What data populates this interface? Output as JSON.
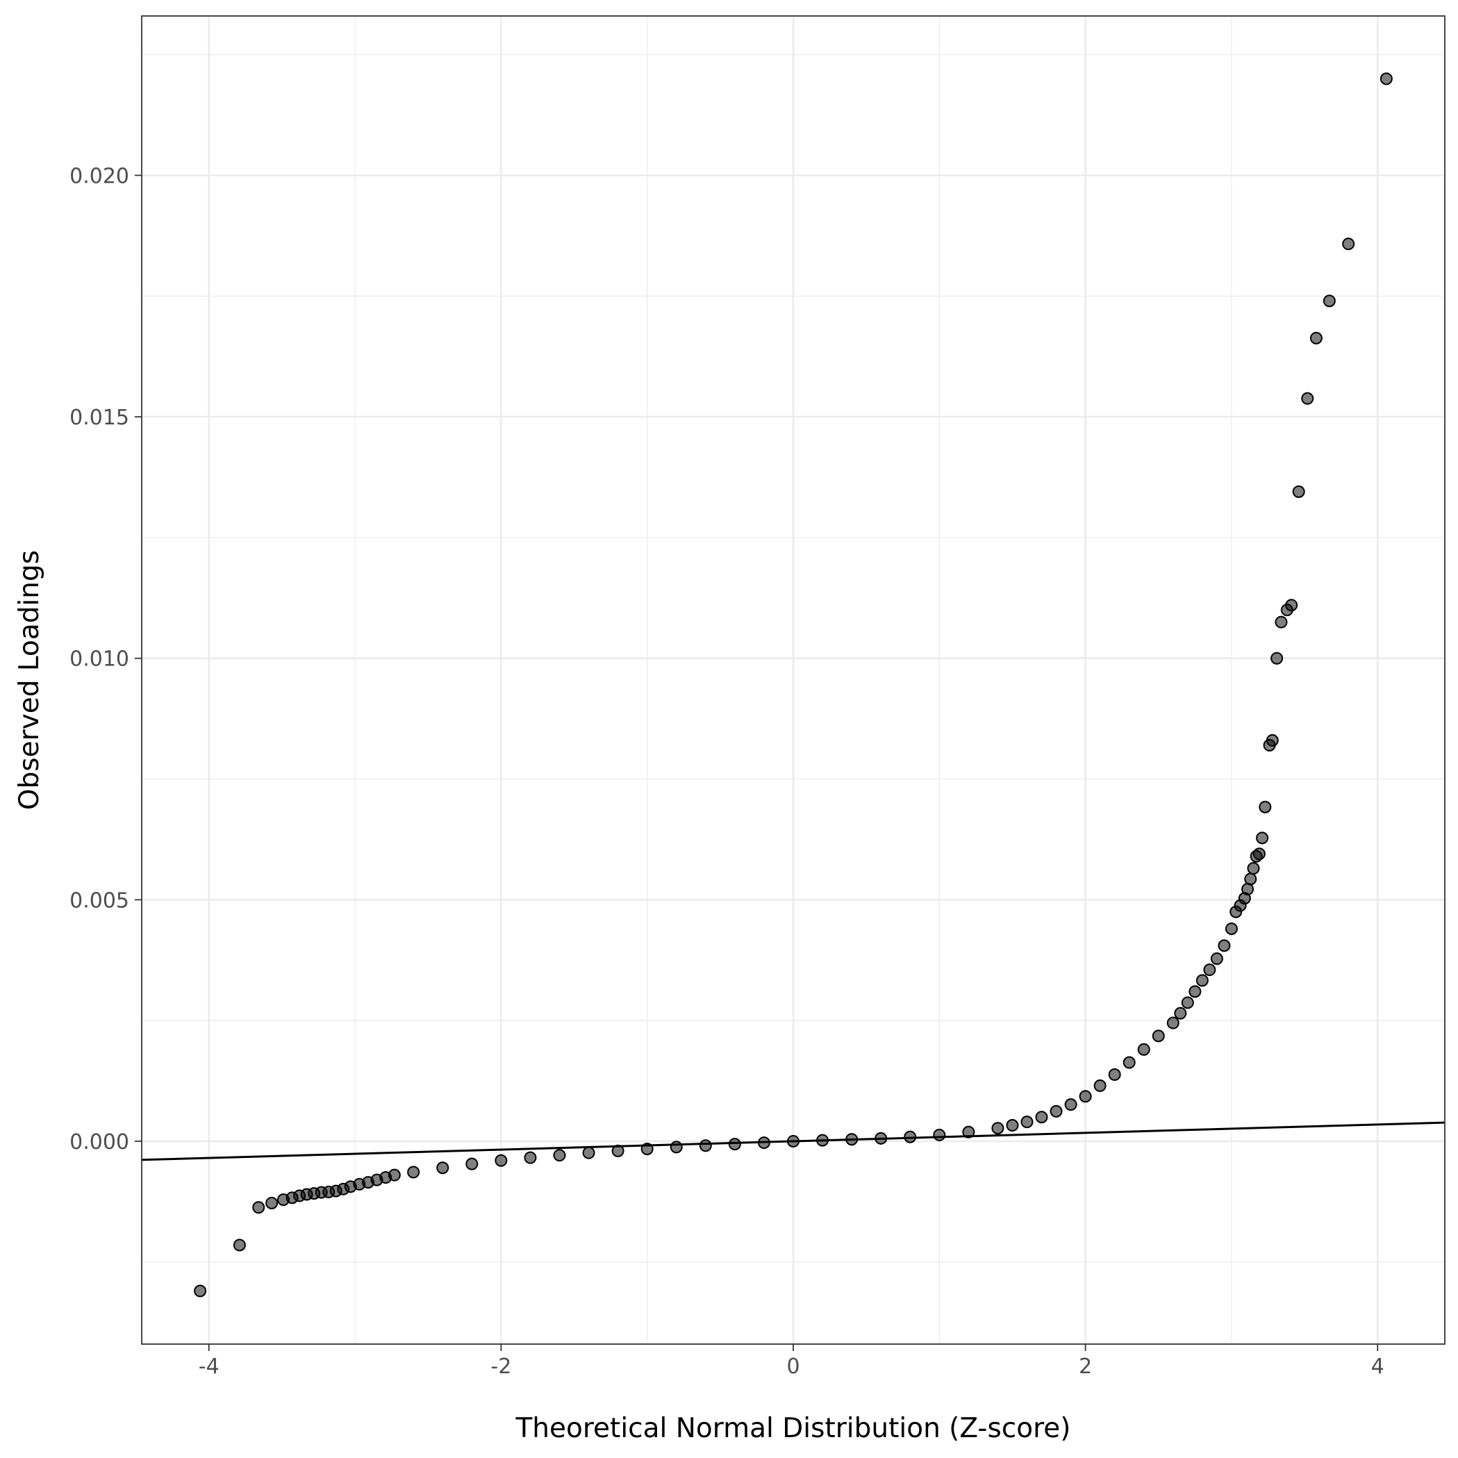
{
  "chart_data": {
    "type": "scatter",
    "title": "",
    "xlabel": "Theoretical Normal Distribution (Z-score)",
    "ylabel": "Observed Loadings",
    "xlim": [
      -4.46,
      4.46
    ],
    "ylim": [
      -0.0042,
      0.0233
    ],
    "x_ticks": [
      -4,
      -2,
      0,
      2,
      4
    ],
    "x_tick_labels": [
      "-4",
      "-2",
      "0",
      "2",
      "4"
    ],
    "y_ticks": [
      0.0,
      0.005,
      0.01,
      0.015,
      0.02
    ],
    "y_tick_labels": [
      "0.000",
      "0.005",
      "0.010",
      "0.015",
      "0.020"
    ],
    "grid": true,
    "legend": "none",
    "reference_line": {
      "label": "",
      "intercept": 0.0,
      "slope": 8.65e-05
    },
    "series": [
      {
        "points": [
          [
            -4.06,
            -0.0031
          ],
          [
            -3.79,
            -0.00215
          ],
          [
            -3.66,
            -0.00137
          ],
          [
            -3.57,
            -0.00128
          ],
          [
            -3.49,
            -0.00121
          ],
          [
            -3.43,
            -0.00117
          ],
          [
            -3.38,
            -0.00113
          ],
          [
            -3.33,
            -0.0011
          ],
          [
            -3.28,
            -0.00108
          ],
          [
            -3.23,
            -0.00106
          ],
          [
            -3.18,
            -0.00105
          ],
          [
            -3.13,
            -0.00103
          ],
          [
            -3.08,
            -0.00099
          ],
          [
            -3.03,
            -0.00094
          ],
          [
            -2.97,
            -0.00089
          ],
          [
            -2.91,
            -0.00085
          ],
          [
            -2.85,
            -0.0008
          ],
          [
            -2.79,
            -0.00075
          ],
          [
            -2.73,
            -0.0007
          ],
          [
            -2.6,
            -0.00064
          ],
          [
            -2.4,
            -0.00055
          ],
          [
            -2.2,
            -0.00047
          ],
          [
            -2.0,
            -0.0004
          ],
          [
            -1.8,
            -0.00034
          ],
          [
            -1.6,
            -0.00029
          ],
          [
            -1.4,
            -0.00024
          ],
          [
            -1.2,
            -0.0002
          ],
          [
            -1.0,
            -0.00016
          ],
          [
            -0.8,
            -0.00012
          ],
          [
            -0.6,
            -9e-05
          ],
          [
            -0.4,
            -6e-05
          ],
          [
            -0.2,
            -3e-05
          ],
          [
            0.0,
            0.0
          ],
          [
            0.2,
            2e-05
          ],
          [
            0.4,
            4e-05
          ],
          [
            0.6,
            6e-05
          ],
          [
            0.8,
            9e-05
          ],
          [
            1.0,
            0.00013
          ],
          [
            1.2,
            0.00019
          ],
          [
            1.4,
            0.00027
          ],
          [
            1.5,
            0.00033
          ],
          [
            1.6,
            0.0004
          ],
          [
            1.7,
            0.0005
          ],
          [
            1.8,
            0.00062
          ],
          [
            1.9,
            0.00076
          ],
          [
            2.0,
            0.00093
          ],
          [
            2.1,
            0.00115
          ],
          [
            2.2,
            0.00138
          ],
          [
            2.3,
            0.00163
          ],
          [
            2.4,
            0.0019
          ],
          [
            2.5,
            0.00218
          ],
          [
            2.6,
            0.00245
          ],
          [
            2.65,
            0.00265
          ],
          [
            2.7,
            0.00287
          ],
          [
            2.75,
            0.0031
          ],
          [
            2.8,
            0.00333
          ],
          [
            2.85,
            0.00355
          ],
          [
            2.9,
            0.00378
          ],
          [
            2.95,
            0.00405
          ],
          [
            3.0,
            0.0044
          ],
          [
            3.03,
            0.00475
          ],
          [
            3.06,
            0.00488
          ],
          [
            3.09,
            0.00503
          ],
          [
            3.11,
            0.00522
          ],
          [
            3.13,
            0.00543
          ],
          [
            3.15,
            0.00565
          ],
          [
            3.17,
            0.0059
          ],
          [
            3.19,
            0.00595
          ],
          [
            3.21,
            0.00628
          ],
          [
            3.23,
            0.00692
          ],
          [
            3.26,
            0.0082
          ],
          [
            3.28,
            0.0083
          ],
          [
            3.31,
            0.01
          ],
          [
            3.34,
            0.01075
          ],
          [
            3.38,
            0.011
          ],
          [
            3.41,
            0.0111
          ],
          [
            3.46,
            0.01345
          ],
          [
            3.52,
            0.01538
          ],
          [
            3.58,
            0.01663
          ],
          [
            3.67,
            0.0174
          ],
          [
            3.8,
            0.01858
          ],
          [
            4.06,
            0.022
          ]
        ]
      }
    ]
  }
}
